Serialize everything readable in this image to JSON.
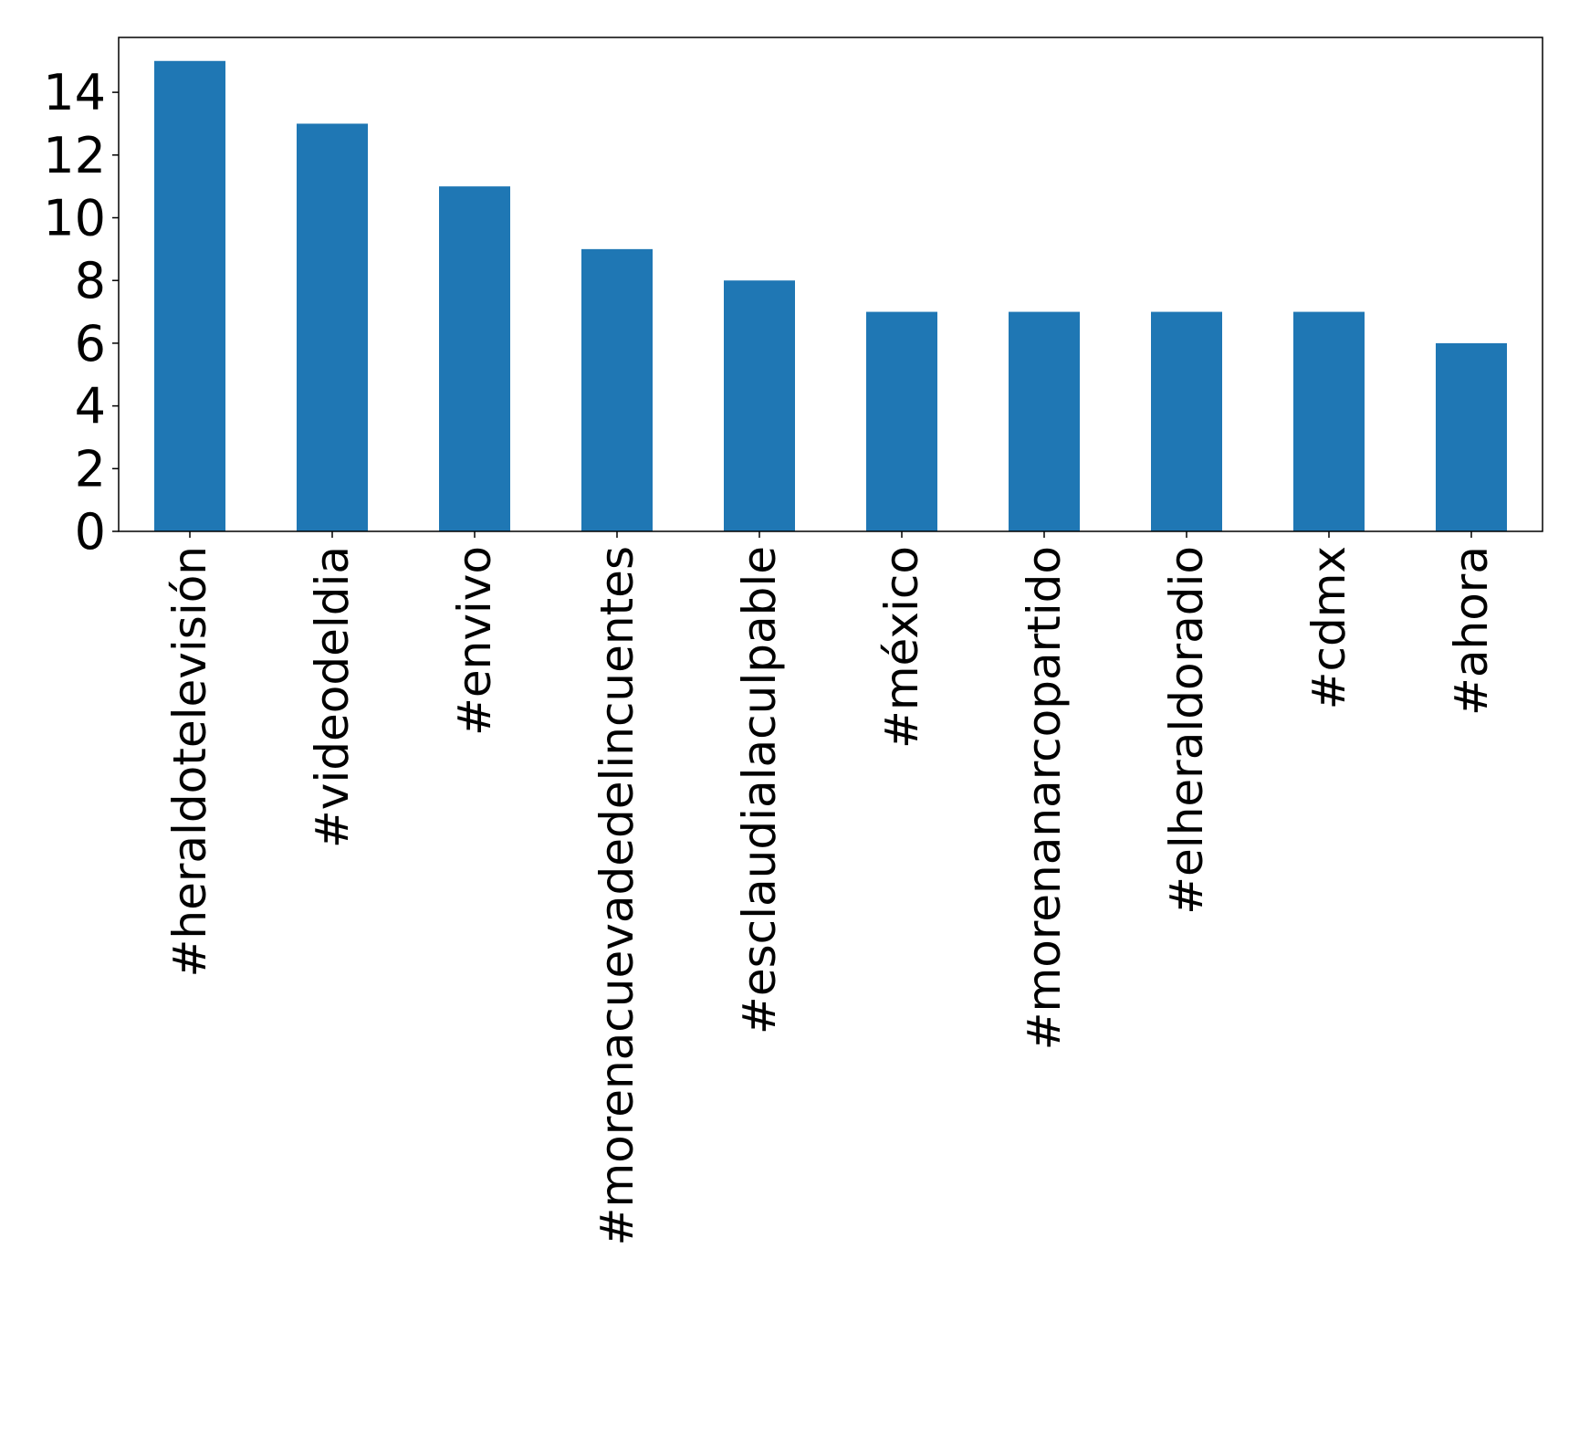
{
  "chart_data": {
    "type": "bar",
    "title": "",
    "xlabel": "",
    "ylabel": "",
    "categories": [
      "#heraldotelevisión",
      "#videodeldia",
      "#envivo",
      "#morenacuevadedelincuentes",
      "#esclaudialaculpable",
      "#méxico",
      "#morenanarcopartido",
      "#elheraldoradio",
      "#cdmx",
      "#ahora"
    ],
    "values": [
      15,
      13,
      11,
      9,
      8,
      7,
      7,
      7,
      7,
      6
    ],
    "ylim": [
      0,
      15.75
    ],
    "yticks": [
      "0",
      "2",
      "4",
      "6",
      "8",
      "10",
      "12",
      "14"
    ],
    "bar_color": "#1f77b4",
    "grid": false,
    "legend": "none"
  }
}
